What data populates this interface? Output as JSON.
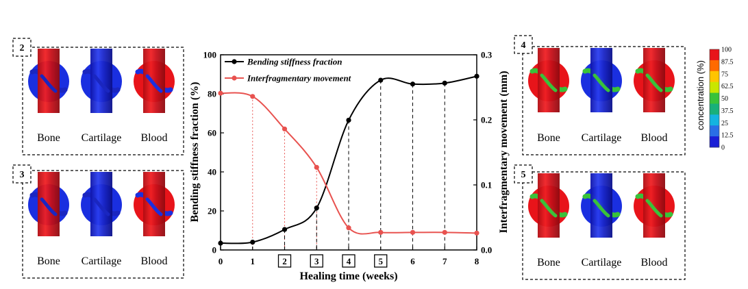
{
  "chart_data": {
    "type": "line",
    "xlabel": "Healing time (weeks)",
    "ylabel_left": "Bending stiffness fraction (%)",
    "ylabel_right": "Interfragmentary movement (mm)",
    "xlim": [
      0,
      8
    ],
    "ylim_left": [
      0,
      100
    ],
    "ylim_right": [
      0,
      0.3
    ],
    "x_ticks": [
      "0",
      "1",
      "2",
      "3",
      "4",
      "5",
      "6",
      "7",
      "8"
    ],
    "boxed_x_ticks": [
      2,
      3,
      4,
      5
    ],
    "y_left_ticks": [
      "0",
      "20",
      "40",
      "60",
      "80",
      "100"
    ],
    "y_right_ticks": [
      "0.0",
      "0.1",
      "0.2",
      "0.3"
    ],
    "series": [
      {
        "name": "Bending stiffness fraction",
        "axis": "left",
        "color": "#000000",
        "x": [
          0,
          1,
          2,
          3,
          4,
          5,
          6,
          7,
          8
        ],
        "y": [
          3.5,
          4,
          10.5,
          21.5,
          66.5,
          87,
          85,
          85.5,
          89
        ]
      },
      {
        "name": "Interfragmentary movement",
        "axis": "right",
        "color": "#e8524f",
        "x": [
          0,
          1,
          2,
          3,
          4,
          5,
          6,
          7,
          8
        ],
        "y": [
          0.241,
          0.236,
          0.186,
          0.127,
          0.034,
          0.027,
          0.027,
          0.027,
          0.026
        ]
      }
    ]
  },
  "panels": [
    {
      "number": "2",
      "labels": [
        "Bone",
        "Cartilage",
        "Blood"
      ]
    },
    {
      "number": "3",
      "labels": [
        "Bone",
        "Cartilage",
        "Blood"
      ]
    },
    {
      "number": "4",
      "labels": [
        "Bone",
        "Cartilage",
        "Blood"
      ]
    },
    {
      "number": "5",
      "labels": [
        "Bone",
        "Cartilage",
        "Blood"
      ]
    }
  ],
  "colorbar": {
    "title": "concentration (%)",
    "ticks": [
      "100",
      "87.5",
      "75",
      "62.5",
      "50",
      "37.5",
      "25",
      "12.5",
      "0"
    ],
    "colors": [
      "#e8141a",
      "#ff6a00",
      "#ffc400",
      "#c9e600",
      "#39c23a",
      "#18b07a",
      "#14b4e0",
      "#2a6fe6",
      "#1a1fd6"
    ]
  }
}
